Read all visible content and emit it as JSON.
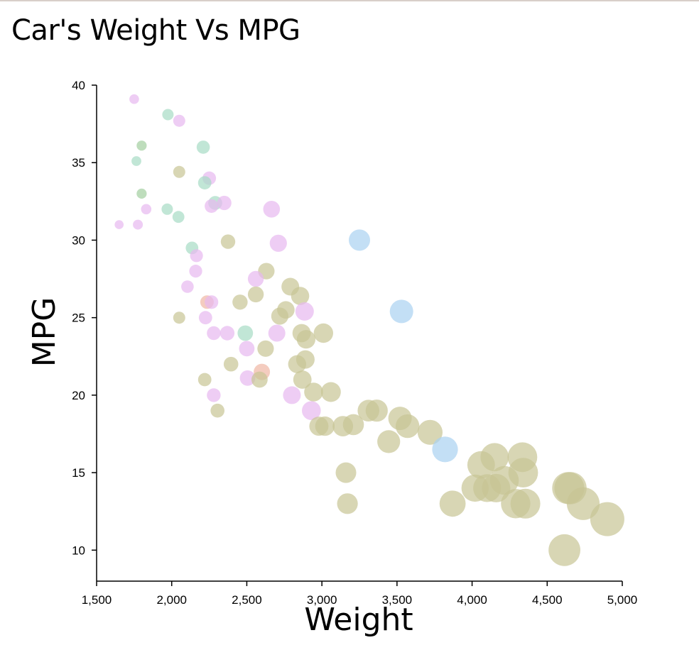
{
  "title": "Car's Weight Vs MPG",
  "chart_data": {
    "type": "scatter",
    "title": "Car's Weight Vs MPG",
    "xlabel": "Weight",
    "ylabel": "MPG",
    "xlim": [
      1500,
      5000
    ],
    "ylim": [
      8,
      40
    ],
    "xticks": [
      1500,
      2000,
      2500,
      3000,
      3500,
      4000,
      4500,
      5000
    ],
    "xtick_labels": [
      "1,500",
      "2,000",
      "2,500",
      "3,000",
      "3,500",
      "4,000",
      "4,500",
      "5,000"
    ],
    "yticks": [
      10,
      15,
      20,
      25,
      30,
      35,
      40
    ],
    "ytick_labels": [
      "10",
      "15",
      "20",
      "25",
      "30",
      "35",
      "40"
    ],
    "grid": false,
    "point_size_encodes": "Weight",
    "colors": {
      "olive": "#c8c594",
      "pink": "#e7b8ef",
      "teal": "#a6dcc5",
      "green": "#a3cf9f",
      "blue": "#a9d2f1",
      "salmon": "#f0b7a4"
    },
    "points": [
      {
        "x": 1750,
        "y": 39.1,
        "color": "pink"
      },
      {
        "x": 1975,
        "y": 38.1,
        "color": "teal"
      },
      {
        "x": 2050,
        "y": 37.7,
        "color": "pink"
      },
      {
        "x": 1800,
        "y": 36.1,
        "color": "green"
      },
      {
        "x": 1765,
        "y": 35.1,
        "color": "teal"
      },
      {
        "x": 2210,
        "y": 36.0,
        "color": "teal"
      },
      {
        "x": 2050,
        "y": 34.4,
        "color": "olive"
      },
      {
        "x": 2250,
        "y": 34.0,
        "color": "pink"
      },
      {
        "x": 2220,
        "y": 33.7,
        "color": "teal"
      },
      {
        "x": 1800,
        "y": 33.0,
        "color": "green"
      },
      {
        "x": 2290,
        "y": 32.4,
        "color": "teal"
      },
      {
        "x": 2265,
        "y": 32.2,
        "color": "pink"
      },
      {
        "x": 2350,
        "y": 32.4,
        "color": "pink"
      },
      {
        "x": 1830,
        "y": 32.0,
        "color": "pink"
      },
      {
        "x": 1970,
        "y": 32.0,
        "color": "teal"
      },
      {
        "x": 2045,
        "y": 31.5,
        "color": "teal"
      },
      {
        "x": 2665,
        "y": 32.0,
        "color": "pink"
      },
      {
        "x": 1650,
        "y": 31.0,
        "color": "pink"
      },
      {
        "x": 1775,
        "y": 31.0,
        "color": "pink"
      },
      {
        "x": 2375,
        "y": 29.9,
        "color": "olive"
      },
      {
        "x": 2710,
        "y": 29.8,
        "color": "pink"
      },
      {
        "x": 2135,
        "y": 29.5,
        "color": "teal"
      },
      {
        "x": 2165,
        "y": 29.0,
        "color": "pink"
      },
      {
        "x": 2160,
        "y": 28.0,
        "color": "pink"
      },
      {
        "x": 2630,
        "y": 28.0,
        "color": "olive"
      },
      {
        "x": 2560,
        "y": 27.5,
        "color": "pink"
      },
      {
        "x": 2105,
        "y": 27.0,
        "color": "pink"
      },
      {
        "x": 2790,
        "y": 27.0,
        "color": "olive"
      },
      {
        "x": 2560,
        "y": 26.5,
        "color": "olive"
      },
      {
        "x": 2855,
        "y": 26.4,
        "color": "olive"
      },
      {
        "x": 2455,
        "y": 26.0,
        "color": "olive"
      },
      {
        "x": 2235,
        "y": 26.0,
        "color": "salmon"
      },
      {
        "x": 2265,
        "y": 26.0,
        "color": "pink"
      },
      {
        "x": 2760,
        "y": 25.5,
        "color": "olive"
      },
      {
        "x": 2720,
        "y": 25.1,
        "color": "olive"
      },
      {
        "x": 2050,
        "y": 25.0,
        "color": "olive"
      },
      {
        "x": 2225,
        "y": 25.0,
        "color": "pink"
      },
      {
        "x": 2885,
        "y": 25.4,
        "color": "pink"
      },
      {
        "x": 3530,
        "y": 25.4,
        "color": "blue"
      },
      {
        "x": 3250,
        "y": 30.0,
        "color": "blue"
      },
      {
        "x": 2490,
        "y": 24.0,
        "color": "teal"
      },
      {
        "x": 2280,
        "y": 24.0,
        "color": "pink"
      },
      {
        "x": 2370,
        "y": 24.0,
        "color": "pink"
      },
      {
        "x": 2700,
        "y": 24.0,
        "color": "pink"
      },
      {
        "x": 2865,
        "y": 24.0,
        "color": "olive"
      },
      {
        "x": 3010,
        "y": 24.0,
        "color": "olive"
      },
      {
        "x": 2895,
        "y": 23.6,
        "color": "olive"
      },
      {
        "x": 2500,
        "y": 23.0,
        "color": "pink"
      },
      {
        "x": 2625,
        "y": 23.0,
        "color": "olive"
      },
      {
        "x": 2890,
        "y": 22.3,
        "color": "olive"
      },
      {
        "x": 2395,
        "y": 22.0,
        "color": "olive"
      },
      {
        "x": 2835,
        "y": 22.0,
        "color": "olive"
      },
      {
        "x": 2600,
        "y": 21.5,
        "color": "salmon"
      },
      {
        "x": 2505,
        "y": 21.1,
        "color": "pink"
      },
      {
        "x": 2585,
        "y": 21.0,
        "color": "olive"
      },
      {
        "x": 2220,
        "y": 21.0,
        "color": "olive"
      },
      {
        "x": 2870,
        "y": 21.0,
        "color": "olive"
      },
      {
        "x": 2945,
        "y": 20.2,
        "color": "olive"
      },
      {
        "x": 3060,
        "y": 20.2,
        "color": "olive"
      },
      {
        "x": 2280,
        "y": 20.0,
        "color": "pink"
      },
      {
        "x": 2800,
        "y": 20.0,
        "color": "pink"
      },
      {
        "x": 2305,
        "y": 19.0,
        "color": "olive"
      },
      {
        "x": 2930,
        "y": 19.0,
        "color": "pink"
      },
      {
        "x": 3310,
        "y": 19.0,
        "color": "olive"
      },
      {
        "x": 3365,
        "y": 19.0,
        "color": "olive"
      },
      {
        "x": 2980,
        "y": 18.0,
        "color": "olive"
      },
      {
        "x": 3020,
        "y": 18.0,
        "color": "olive"
      },
      {
        "x": 3140,
        "y": 18.0,
        "color": "olive"
      },
      {
        "x": 3210,
        "y": 18.1,
        "color": "olive"
      },
      {
        "x": 3520,
        "y": 18.5,
        "color": "olive"
      },
      {
        "x": 3570,
        "y": 18.0,
        "color": "olive"
      },
      {
        "x": 3720,
        "y": 17.6,
        "color": "olive"
      },
      {
        "x": 3445,
        "y": 17.0,
        "color": "olive"
      },
      {
        "x": 3820,
        "y": 16.5,
        "color": "blue"
      },
      {
        "x": 3160,
        "y": 15.0,
        "color": "olive"
      },
      {
        "x": 3170,
        "y": 13.0,
        "color": "olive"
      },
      {
        "x": 4060,
        "y": 15.5,
        "color": "olive"
      },
      {
        "x": 4150,
        "y": 16.0,
        "color": "olive"
      },
      {
        "x": 4335,
        "y": 16.0,
        "color": "olive"
      },
      {
        "x": 4340,
        "y": 15.0,
        "color": "olive"
      },
      {
        "x": 4215,
        "y": 14.5,
        "color": "olive"
      },
      {
        "x": 4020,
        "y": 14.0,
        "color": "olive"
      },
      {
        "x": 4100,
        "y": 14.0,
        "color": "olive"
      },
      {
        "x": 4160,
        "y": 14.0,
        "color": "olive"
      },
      {
        "x": 4640,
        "y": 14.0,
        "color": "olive"
      },
      {
        "x": 4655,
        "y": 14.0,
        "color": "olive"
      },
      {
        "x": 3870,
        "y": 13.0,
        "color": "olive"
      },
      {
        "x": 4290,
        "y": 13.0,
        "color": "olive"
      },
      {
        "x": 4355,
        "y": 13.0,
        "color": "olive"
      },
      {
        "x": 4740,
        "y": 13.0,
        "color": "olive"
      },
      {
        "x": 4900,
        "y": 12.0,
        "color": "olive"
      },
      {
        "x": 4615,
        "y": 10.0,
        "color": "olive"
      }
    ]
  }
}
